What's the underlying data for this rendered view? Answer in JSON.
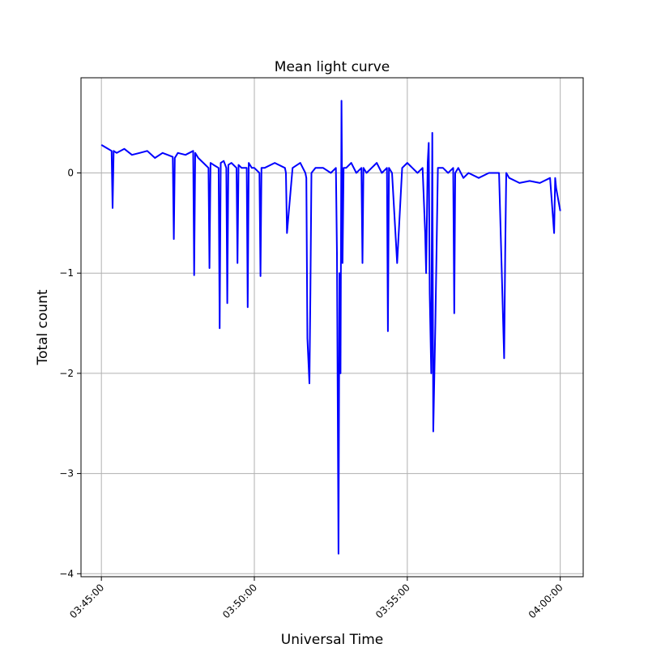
{
  "chart_data": {
    "type": "line",
    "title": "Mean light curve",
    "xlabel": "Universal Time",
    "ylabel": "Total count",
    "x_ticks": [
      "03:45:00",
      "03:50:00",
      "03:55:00",
      "04:00:00"
    ],
    "x_range": [
      "03:44:20",
      "04:00:45"
    ],
    "y_ticks": [
      0,
      -1,
      -2,
      -3,
      -4
    ],
    "y_tick_labels": [
      "0",
      "−1",
      "−2",
      "−3",
      "−4"
    ],
    "ylim": [
      -4.03,
      0.95
    ],
    "grid": true,
    "line_color": "#0000ff",
    "series": [
      {
        "x": [
          "03:45:00",
          "03:45:10",
          "03:45:20",
          "03:45:22",
          "03:45:24",
          "03:45:30",
          "03:45:45",
          "03:46:00",
          "03:46:15",
          "03:46:30",
          "03:46:45",
          "03:47:00",
          "03:47:10",
          "03:47:20",
          "03:47:22",
          "03:47:24",
          "03:47:30",
          "03:47:45",
          "03:48:00",
          "03:48:02",
          "03:48:04",
          "03:48:10",
          "03:48:20",
          "03:48:30",
          "03:48:32",
          "03:48:34",
          "03:48:40",
          "03:48:50",
          "03:48:52",
          "03:48:54",
          "03:49:00",
          "03:49:05",
          "03:49:07",
          "03:49:09",
          "03:49:15",
          "03:49:25",
          "03:49:27",
          "03:49:29",
          "03:49:35",
          "03:49:45",
          "03:49:47",
          "03:49:49",
          "03:49:55",
          "03:50:00",
          "03:50:10",
          "03:50:12",
          "03:50:14",
          "03:50:20",
          "03:50:40",
          "03:51:00",
          "03:51:02",
          "03:51:04",
          "03:51:15",
          "03:51:30",
          "03:51:40",
          "03:51:42",
          "03:51:44",
          "03:51:48",
          "03:51:50",
          "03:51:52",
          "03:52:00",
          "03:52:15",
          "03:52:30",
          "03:52:40",
          "03:52:42",
          "03:52:45",
          "03:52:47",
          "03:52:49",
          "03:52:51",
          "03:52:53",
          "03:52:55",
          "03:53:00",
          "03:53:10",
          "03:53:20",
          "03:53:30",
          "03:53:32",
          "03:53:34",
          "03:53:40",
          "03:53:50",
          "03:54:00",
          "03:54:10",
          "03:54:20",
          "03:54:22",
          "03:54:24",
          "03:54:30",
          "03:54:40",
          "03:54:50",
          "03:55:00",
          "03:55:10",
          "03:55:20",
          "03:55:30",
          "03:55:35",
          "03:55:37",
          "03:55:40",
          "03:55:42",
          "03:55:44",
          "03:55:47",
          "03:55:49",
          "03:55:51",
          "03:55:55",
          "03:56:00",
          "03:56:10",
          "03:56:20",
          "03:56:30",
          "03:56:32",
          "03:56:34",
          "03:56:40",
          "03:56:50",
          "03:57:00",
          "03:57:20",
          "03:57:40",
          "03:58:00",
          "03:58:10",
          "03:58:12",
          "03:58:14",
          "03:58:20",
          "03:58:40",
          "03:59:00",
          "03:59:20",
          "03:59:40",
          "03:59:48",
          "03:59:50",
          "03:59:52",
          "04:00:00"
        ],
        "values": [
          0.28,
          0.25,
          0.22,
          -0.35,
          0.22,
          0.2,
          0.24,
          0.18,
          0.2,
          0.22,
          0.15,
          0.2,
          0.18,
          0.16,
          -0.66,
          0.15,
          0.2,
          0.18,
          0.22,
          -1.02,
          0.2,
          0.15,
          0.1,
          0.05,
          -0.95,
          0.1,
          0.08,
          0.05,
          -1.55,
          0.1,
          0.12,
          0.05,
          -1.3,
          0.08,
          0.1,
          0.05,
          -0.9,
          0.08,
          0.05,
          0.05,
          -1.34,
          0.1,
          0.05,
          0.05,
          0.0,
          -1.03,
          0.05,
          0.05,
          0.1,
          0.05,
          0.0,
          -0.6,
          0.05,
          0.1,
          0.0,
          -0.05,
          -1.65,
          -2.1,
          -1.2,
          0.0,
          0.05,
          0.05,
          0.0,
          0.05,
          -0.8,
          -3.8,
          -1.0,
          -2.0,
          0.72,
          -0.9,
          0.05,
          0.05,
          0.1,
          0.0,
          0.05,
          -0.9,
          0.05,
          0.0,
          0.05,
          0.1,
          0.0,
          0.05,
          -1.58,
          0.05,
          0.0,
          -0.9,
          0.05,
          0.1,
          0.05,
          0.0,
          0.05,
          -0.6,
          -1.0,
          0.1,
          0.3,
          -1.2,
          -2.0,
          0.4,
          -2.58,
          -1.5,
          0.05,
          0.05,
          0.0,
          0.05,
          -1.4,
          0.0,
          0.05,
          -0.05,
          0.0,
          -0.05,
          0.0,
          0.0,
          -1.85,
          -0.8,
          0.0,
          -0.05,
          -0.1,
          -0.08,
          -0.1,
          -0.05,
          -0.6,
          -0.05,
          -0.15,
          -0.38
        ]
      }
    ]
  }
}
